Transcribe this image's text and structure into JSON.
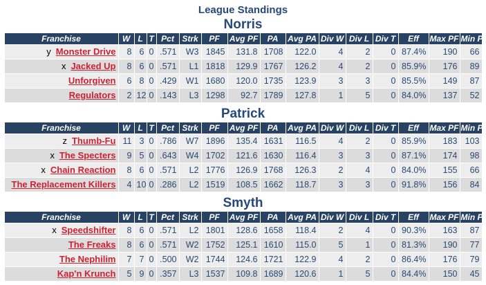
{
  "page": {
    "title": "League Standings"
  },
  "columns": [
    "Franchise",
    "W",
    "L",
    "T",
    "Pct",
    "Strk",
    "PF",
    "Avg PF",
    "PA",
    "Avg PA",
    "Div W",
    "Div L",
    "Div T",
    "Eff",
    "Max PF",
    "Min PF"
  ],
  "colors": {
    "header_bg": "#274263",
    "heading_text": "#26497B",
    "data_text": "#264A73",
    "link_red": "#CC2233",
    "row_light": "#EDEDED",
    "row_dark": "#DCDCDC"
  },
  "divisions": [
    {
      "name": "Norris",
      "teams": [
        {
          "prefix": "y",
          "name": "Monster Drive",
          "w": 8,
          "l": 6,
          "t": 0,
          "pct": ".571",
          "strk": "W3",
          "pf": 1845,
          "avg_pf": "131.8",
          "pa": 1708,
          "avg_pa": "122.0",
          "div_w": 4,
          "div_l": 2,
          "div_t": 0,
          "eff": "87.4%",
          "max_pf": 190,
          "min_pf": 66
        },
        {
          "prefix": "x",
          "name": "Jacked Up",
          "w": 8,
          "l": 6,
          "t": 0,
          "pct": ".571",
          "strk": "L1",
          "pf": 1818,
          "avg_pf": "129.9",
          "pa": 1767,
          "avg_pa": "126.2",
          "div_w": 4,
          "div_l": 2,
          "div_t": 0,
          "eff": "85.9%",
          "max_pf": 176,
          "min_pf": 89
        },
        {
          "prefix": "",
          "name": "Unforgiven",
          "w": 6,
          "l": 8,
          "t": 0,
          "pct": ".429",
          "strk": "W1",
          "pf": 1680,
          "avg_pf": "120.0",
          "pa": 1735,
          "avg_pa": "123.9",
          "div_w": 3,
          "div_l": 3,
          "div_t": 0,
          "eff": "85.5%",
          "max_pf": 149,
          "min_pf": 87
        },
        {
          "prefix": "",
          "name": "Regulators",
          "w": 2,
          "l": 12,
          "t": 0,
          "pct": ".143",
          "strk": "L3",
          "pf": 1298,
          "avg_pf": "92.7",
          "pa": 1789,
          "avg_pa": "127.8",
          "div_w": 1,
          "div_l": 5,
          "div_t": 0,
          "eff": "84.0%",
          "max_pf": 137,
          "min_pf": 52
        }
      ]
    },
    {
      "name": "Patrick",
      "teams": [
        {
          "prefix": "z",
          "name": "Thumb-Fu",
          "w": 11,
          "l": 3,
          "t": 0,
          "pct": ".786",
          "strk": "W7",
          "pf": 1896,
          "avg_pf": "135.4",
          "pa": 1631,
          "avg_pa": "116.5",
          "div_w": 4,
          "div_l": 2,
          "div_t": 0,
          "eff": "85.9%",
          "max_pf": 183,
          "min_pf": 103
        },
        {
          "prefix": "x",
          "name": "The Specters",
          "w": 9,
          "l": 5,
          "t": 0,
          "pct": ".643",
          "strk": "W4",
          "pf": 1702,
          "avg_pf": "121.6",
          "pa": 1630,
          "avg_pa": "116.4",
          "div_w": 3,
          "div_l": 3,
          "div_t": 0,
          "eff": "87.1%",
          "max_pf": 174,
          "min_pf": 98
        },
        {
          "prefix": "x",
          "name": "Chain Reaction",
          "w": 8,
          "l": 6,
          "t": 0,
          "pct": ".571",
          "strk": "L2",
          "pf": 1776,
          "avg_pf": "126.9",
          "pa": 1768,
          "avg_pa": "126.3",
          "div_w": 2,
          "div_l": 4,
          "div_t": 0,
          "eff": "84.0%",
          "max_pf": 155,
          "min_pf": 66
        },
        {
          "prefix": "",
          "name": "The Replacement Killers",
          "w": 4,
          "l": 10,
          "t": 0,
          "pct": ".286",
          "strk": "L2",
          "pf": 1519,
          "avg_pf": "108.5",
          "pa": 1662,
          "avg_pa": "118.7",
          "div_w": 3,
          "div_l": 3,
          "div_t": 0,
          "eff": "91.8%",
          "max_pf": 156,
          "min_pf": 84
        }
      ]
    },
    {
      "name": "Smyth",
      "teams": [
        {
          "prefix": "x",
          "name": "Speedshifter",
          "w": 8,
          "l": 6,
          "t": 0,
          "pct": ".571",
          "strk": "L2",
          "pf": 1801,
          "avg_pf": "128.6",
          "pa": 1658,
          "avg_pa": "118.4",
          "div_w": 2,
          "div_l": 4,
          "div_t": 0,
          "eff": "90.3%",
          "max_pf": 163,
          "min_pf": 87
        },
        {
          "prefix": "",
          "name": "The Freaks",
          "w": 8,
          "l": 6,
          "t": 0,
          "pct": ".571",
          "strk": "W2",
          "pf": 1752,
          "avg_pf": "125.1",
          "pa": 1610,
          "avg_pa": "115.0",
          "div_w": 5,
          "div_l": 1,
          "div_t": 0,
          "eff": "81.3%",
          "max_pf": 190,
          "min_pf": 77
        },
        {
          "prefix": "",
          "name": "The Nephilim",
          "w": 7,
          "l": 7,
          "t": 0,
          "pct": ".500",
          "strk": "W2",
          "pf": 1744,
          "avg_pf": "124.6",
          "pa": 1721,
          "avg_pa": "122.9",
          "div_w": 4,
          "div_l": 2,
          "div_t": 0,
          "eff": "86.4%",
          "max_pf": 176,
          "min_pf": 79
        },
        {
          "prefix": "",
          "name": "Kap'n Krunch",
          "w": 5,
          "l": 9,
          "t": 0,
          "pct": ".357",
          "strk": "L3",
          "pf": 1537,
          "avg_pf": "109.8",
          "pa": 1689,
          "avg_pa": "120.6",
          "div_w": 1,
          "div_l": 5,
          "div_t": 0,
          "eff": "84.4%",
          "max_pf": 150,
          "min_pf": 45
        }
      ]
    }
  ]
}
